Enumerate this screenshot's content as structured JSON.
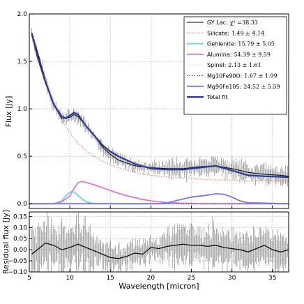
{
  "chart_data": [
    {
      "type": "line",
      "xlabel": "",
      "ylabel": "Flux [Jy]",
      "xlim": [
        5,
        37
      ],
      "ylim": [
        -0.05,
        2.0
      ],
      "xticks": [
        5,
        10,
        15,
        20,
        25,
        30,
        35
      ],
      "yticks": [
        0.0,
        0.5,
        1.0,
        1.5,
        2.0
      ],
      "ytick_labels": [
        "0.0",
        "0.5",
        "1.0",
        "1.5",
        "2.0"
      ],
      "grid": true,
      "legend_position": "top-right",
      "series": [
        {
          "name": "GY Lac:",
          "value": "χ² =38.33",
          "color": "#000000",
          "style": "solid-errorbars",
          "x": [
            5.3,
            6,
            7,
            8,
            9,
            10,
            10.5,
            11,
            12,
            13,
            14,
            15,
            16,
            18,
            20,
            22,
            24,
            26,
            28,
            30,
            32,
            34,
            36,
            37
          ],
          "y": [
            1.8,
            1.6,
            1.3,
            1.05,
            0.9,
            0.91,
            0.94,
            0.92,
            0.82,
            0.72,
            0.6,
            0.52,
            0.46,
            0.4,
            0.38,
            0.37,
            0.37,
            0.39,
            0.4,
            0.37,
            0.33,
            0.31,
            0.3,
            0.29
          ]
        },
        {
          "name": "Silicate:",
          "value": "1.49 ± 4.14",
          "color": "#e06666",
          "style": "dotted",
          "x": [
            5.3,
            6,
            7,
            8,
            9,
            10,
            11,
            12,
            13,
            14,
            15,
            16,
            18,
            20,
            22,
            24,
            26,
            28,
            30,
            32,
            34,
            37
          ],
          "y": [
            1.8,
            1.55,
            1.28,
            1.05,
            0.88,
            0.75,
            0.64,
            0.56,
            0.5,
            0.45,
            0.41,
            0.38,
            0.33,
            0.3,
            0.28,
            0.27,
            0.26,
            0.25,
            0.25,
            0.24,
            0.24,
            0.24
          ]
        },
        {
          "name": "Gehlenite:",
          "value": "15.79 ± 5.05",
          "color": "#6fd0e0",
          "style": "solid",
          "x": [
            5,
            8,
            9,
            9.5,
            10,
            10.3,
            10.6,
            11,
            11.5,
            12,
            13,
            37
          ],
          "y": [
            0.0,
            0.0,
            0.03,
            0.08,
            0.12,
            0.13,
            0.12,
            0.09,
            0.05,
            0.02,
            0.0,
            0.0
          ]
        },
        {
          "name": "Alumina:",
          "value": "54.39 ± 9.59",
          "color": "#dd77dd",
          "style": "solid",
          "x": [
            5,
            8,
            9,
            10,
            10.5,
            11,
            11.5,
            12,
            13,
            14,
            15,
            16,
            17,
            18,
            19,
            20,
            21,
            22,
            24,
            26,
            37
          ],
          "y": [
            0.0,
            0.0,
            0.02,
            0.08,
            0.16,
            0.22,
            0.235,
            0.225,
            0.2,
            0.17,
            0.14,
            0.11,
            0.085,
            0.065,
            0.045,
            0.03,
            0.02,
            0.012,
            0.005,
            0.0,
            0.0
          ]
        },
        {
          "name": "Spinel:",
          "value": "2.13 ± 1.61",
          "color": "#dddd88",
          "style": "dotted",
          "x": [
            5,
            12,
            13,
            14,
            15,
            16,
            17,
            37
          ],
          "y": [
            0.0,
            0.0,
            0.004,
            0.008,
            0.006,
            0.003,
            0.0,
            0.0
          ]
        },
        {
          "name": "Mg10Fe90O:",
          "value": "1.67 ± 1.99",
          "color": "#444444",
          "style": "dotted",
          "x": [
            5,
            37
          ],
          "y": [
            0.0,
            0.0
          ]
        },
        {
          "name": "Mg90Fe10S:",
          "value": "24.52 ± 5.59",
          "color": "#7777ee",
          "style": "solid",
          "x": [
            5,
            21,
            22,
            23,
            24,
            25,
            26,
            27,
            28,
            29,
            30,
            31,
            32,
            37
          ],
          "y": [
            0.0,
            0.0,
            0.01,
            0.03,
            0.05,
            0.07,
            0.08,
            0.09,
            0.105,
            0.1,
            0.07,
            0.03,
            0.01,
            0.0
          ]
        },
        {
          "name": "Total fit",
          "value": "",
          "color": "#2a3a9a",
          "style": "solid-thick",
          "x": [
            5.3,
            6,
            7,
            8,
            9,
            9.5,
            10,
            10.5,
            11,
            11.5,
            12,
            13,
            14,
            15,
            16,
            18,
            20,
            22,
            24,
            26,
            28,
            30,
            32,
            34,
            37
          ],
          "y": [
            1.8,
            1.55,
            1.28,
            1.05,
            0.92,
            0.9,
            0.93,
            0.96,
            0.94,
            0.88,
            0.82,
            0.72,
            0.62,
            0.55,
            0.5,
            0.42,
            0.37,
            0.36,
            0.36,
            0.38,
            0.4,
            0.35,
            0.3,
            0.29,
            0.28
          ]
        }
      ]
    },
    {
      "type": "line",
      "xlabel": "Wavelength [micron]",
      "ylabel": "Residual flux [Jy]",
      "xlim": [
        5,
        37
      ],
      "ylim": [
        -0.1,
        0.17
      ],
      "xticks": [
        5,
        10,
        15,
        20,
        25,
        30,
        35
      ],
      "yticks": [
        -0.1,
        -0.05,
        0.0,
        0.05,
        0.1,
        0.15
      ],
      "ytick_labels": [
        "−0.10",
        "−0.05",
        "0.00",
        "0.05",
        "0.10",
        "0.15"
      ],
      "grid": true,
      "series": [
        {
          "name": "",
          "color": "#000000",
          "style": "solid-errorbars",
          "x": [
            5.3,
            6,
            7,
            8,
            9,
            10,
            11,
            12,
            13,
            14,
            15,
            16,
            17,
            18,
            19,
            20,
            21,
            22,
            23,
            24,
            25,
            26,
            27,
            28,
            29,
            30,
            31,
            32,
            33,
            34,
            35,
            36,
            37
          ],
          "y": [
            -0.02,
            0.0,
            0.03,
            0.02,
            0.0,
            0.01,
            0.025,
            0.01,
            -0.005,
            -0.02,
            -0.035,
            -0.04,
            -0.03,
            -0.015,
            -0.02,
            0.01,
            0.005,
            0.015,
            0.02,
            0.025,
            0.02,
            0.02,
            0.015,
            0.02,
            0.01,
            0.005,
            0.0,
            -0.01,
            0.005,
            0.02,
            0.0,
            -0.01,
            0.0
          ]
        }
      ]
    }
  ]
}
